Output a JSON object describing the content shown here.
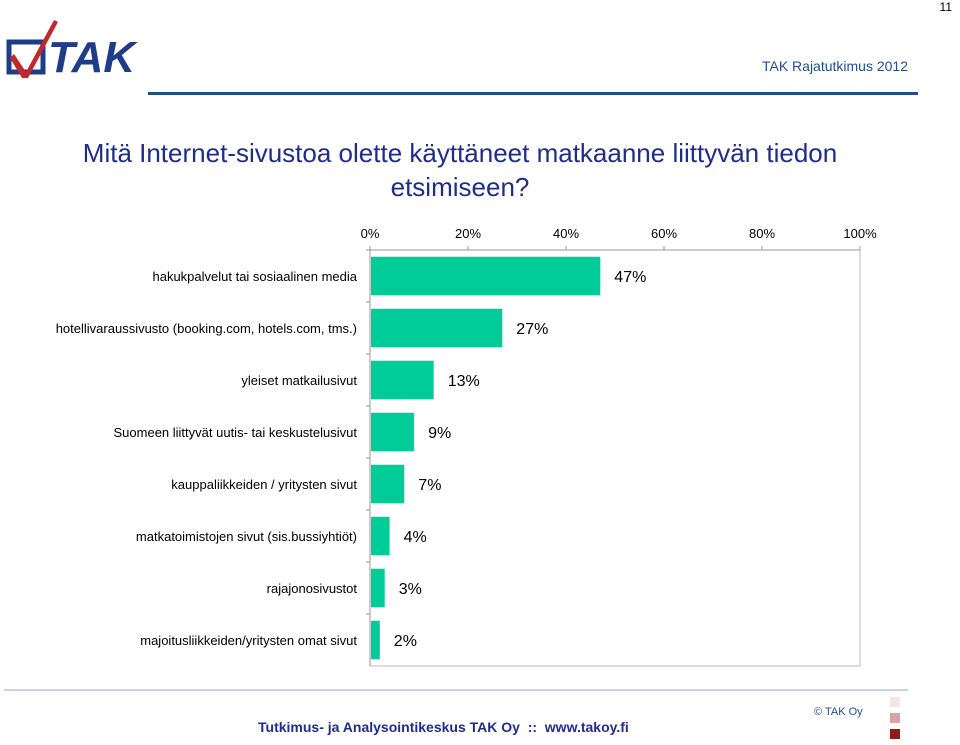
{
  "page_number": "11",
  "header": {
    "logo_text": "TAK",
    "title": "TAK Rajatutkimus 2012"
  },
  "colors": {
    "bar": "#00cc99",
    "header_text": "#1f4e8c",
    "question_text": "#1f2c8a",
    "logo_dark": "#1f3c88",
    "logo_red": "#c0282c",
    "square_1": "#f2e6e6",
    "square_2": "#d4a5a5",
    "square_3": "#8b1c1c"
  },
  "chart_data": {
    "type": "bar",
    "orientation": "horizontal",
    "title": "Mitä Internet-sivustoa olette käyttäneet matkaanne liittyvän tiedon etsimiseen?",
    "categories": [
      "hakukpalvelut tai sosiaalinen media",
      "hotellivaraussivusto (booking.com, hotels.com, tms.)",
      "yleiset matkailusivut",
      "Suomeen liittyvät uutis- tai keskustelusivut",
      "kauppaliikkeiden / yritysten sivut",
      "matkatoimistojen sivut (sis.bussiyhtiöt)",
      "rajajonosivustot",
      "majoitusliikkeiden/yritysten omat sivut"
    ],
    "values": [
      47,
      27,
      13,
      9,
      7,
      4,
      3,
      2
    ],
    "value_labels": [
      "47%",
      "27%",
      "13%",
      "9%",
      "7%",
      "4%",
      "3%",
      "2%"
    ],
    "x_ticks": [
      "0%",
      "20%",
      "40%",
      "60%",
      "80%",
      "100%"
    ],
    "xlim": [
      0,
      100
    ],
    "axis_position": "top",
    "grid": false,
    "legend": "none"
  },
  "footer": {
    "copyright": "© TAK Oy",
    "text": "Tutkimus- ja Analysointikeskus TAK Oy  ::  www.takoy.fi"
  }
}
